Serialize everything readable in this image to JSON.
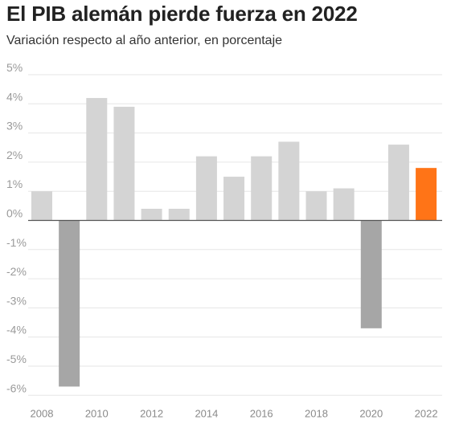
{
  "title": "El PIB alemán pierde fuerza en 2022",
  "subtitle": "Variación respecto al año anterior, en porcentaje",
  "colors": {
    "positive": "#d4d4d4",
    "negative": "#a6a6a6",
    "highlight": "#ff7417",
    "grid": "#e6e6e6",
    "zero_line": "#555555"
  },
  "chart_data": {
    "type": "bar",
    "title": "El PIB alemán pierde fuerza en 2022",
    "subtitle": "Variación respecto al año anterior, en porcentaje",
    "categories": [
      "2008",
      "2009",
      "2010",
      "2011",
      "2012",
      "2013",
      "2014",
      "2015",
      "2016",
      "2017",
      "2018",
      "2019",
      "2020",
      "2021",
      "2022"
    ],
    "values": [
      1.0,
      -5.7,
      4.2,
      3.9,
      0.4,
      0.4,
      2.2,
      1.5,
      2.2,
      2.7,
      1.0,
      1.1,
      -3.7,
      2.6,
      1.8
    ],
    "x_tick_labels": [
      "2008",
      "2010",
      "2012",
      "2014",
      "2016",
      "2018",
      "2020",
      "2022"
    ],
    "y_ticks": [
      5,
      4,
      3,
      2,
      1,
      0,
      -1,
      -2,
      -3,
      -4,
      -5,
      -6
    ],
    "y_tick_labels": [
      "5%",
      "4%",
      "3%",
      "2%",
      "1%",
      "0%",
      "-1%",
      "-2%",
      "-3%",
      "-4%",
      "-5%",
      "-6%"
    ],
    "ylim": [
      -6,
      5
    ],
    "highlight": "2022",
    "grid": true
  }
}
